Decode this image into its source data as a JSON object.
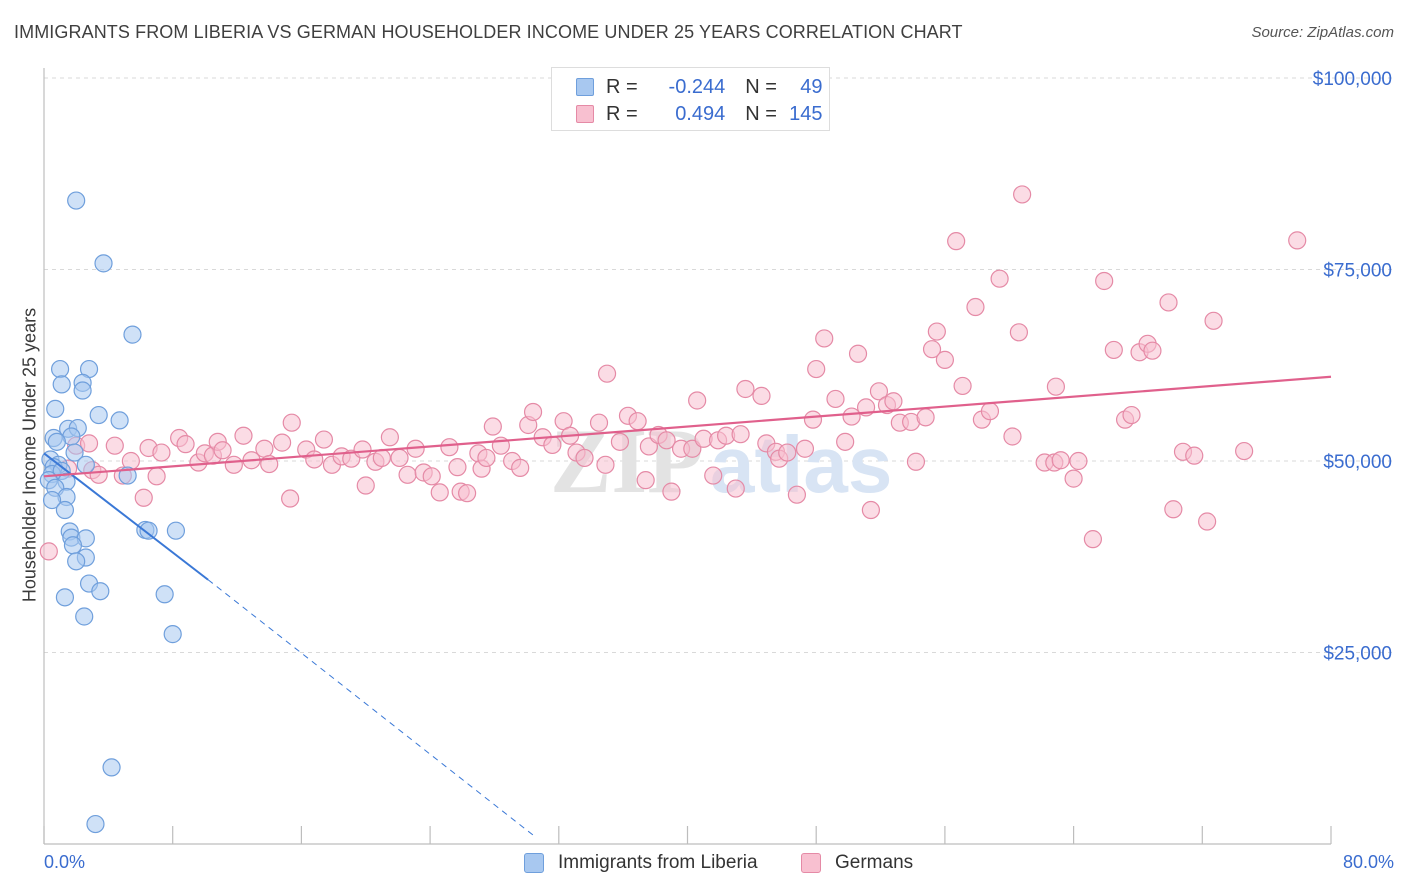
{
  "title": "IMMIGRANTS FROM LIBERIA VS GERMAN HOUSEHOLDER INCOME UNDER 25 YEARS CORRELATION CHART",
  "source": "Source: ZipAtlas.com",
  "watermark": {
    "zip": "ZIP",
    "atlas": "atlas"
  },
  "legend": {
    "rows": [
      {
        "r_label": "R = ",
        "r_value": "-0.244",
        "n_label": "N = ",
        "n_value": "49",
        "color": "#a8c8f0",
        "border": "#6f9fdc"
      },
      {
        "r_label": "R = ",
        "r_value": "0.494",
        "n_label": "N = ",
        "n_value": "145",
        "color": "#f8c0d0",
        "border": "#e58aa6"
      }
    ]
  },
  "chart_data": {
    "type": "scatter",
    "title": "IMMIGRANTS FROM LIBERIA VS GERMAN HOUSEHOLDER INCOME UNDER 25 YEARS CORRELATION CHART",
    "xlabel": "",
    "ylabel": "Householder Income Under 25 years",
    "xlim": [
      0,
      80
    ],
    "ylim": [
      0,
      100000
    ],
    "x_tick_labels": [
      "0.0%",
      "80.0%"
    ],
    "y_tick_labels": [
      "$25,000",
      "$50,000",
      "$75,000",
      "$100,000"
    ],
    "y_ticks": [
      25000,
      50000,
      75000,
      100000
    ],
    "grid": true,
    "series": [
      {
        "name": "Immigrants from Liberia",
        "color": "#a8c8f0",
        "stroke": "#6f9fdc",
        "trend": {
          "x0": 0,
          "y0": 51000,
          "x1": 10.2,
          "y1": 34500,
          "dashed_to_x": 30.5,
          "dashed_to_y": 1000,
          "color": "#3a78d6"
        },
        "points": [
          [
            2.0,
            84000
          ],
          [
            3.7,
            75800
          ],
          [
            5.5,
            66500
          ],
          [
            1.0,
            62000
          ],
          [
            2.8,
            62000
          ],
          [
            1.1,
            60000
          ],
          [
            2.4,
            60200
          ],
          [
            2.4,
            59200
          ],
          [
            0.7,
            56800
          ],
          [
            3.4,
            56000
          ],
          [
            4.7,
            55300
          ],
          [
            1.5,
            54200
          ],
          [
            2.1,
            54300
          ],
          [
            1.7,
            53200
          ],
          [
            0.6,
            53000
          ],
          [
            0.8,
            52500
          ],
          [
            1.9,
            51100
          ],
          [
            0.4,
            50200
          ],
          [
            0.9,
            49500
          ],
          [
            0.6,
            49200
          ],
          [
            2.6,
            49500
          ],
          [
            0.5,
            48300
          ],
          [
            1.1,
            48700
          ],
          [
            1.4,
            47300
          ],
          [
            0.3,
            47500
          ],
          [
            0.7,
            46500
          ],
          [
            5.2,
            48100
          ],
          [
            1.4,
            45300
          ],
          [
            0.5,
            44900
          ],
          [
            1.3,
            43600
          ],
          [
            1.6,
            40800
          ],
          [
            1.7,
            40000
          ],
          [
            2.6,
            39900
          ],
          [
            1.8,
            39000
          ],
          [
            6.3,
            41000
          ],
          [
            6.5,
            40900
          ],
          [
            8.2,
            40900
          ],
          [
            2.6,
            37400
          ],
          [
            2.0,
            36900
          ],
          [
            2.8,
            34000
          ],
          [
            1.3,
            32200
          ],
          [
            3.5,
            33000
          ],
          [
            7.5,
            32600
          ],
          [
            2.5,
            29700
          ],
          [
            8.0,
            27400
          ],
          [
            4.2,
            10000
          ],
          [
            3.2,
            2600
          ]
        ]
      },
      {
        "name": "Germans",
        "color": "#f8c0d0",
        "stroke": "#e58aa6",
        "trend": {
          "x0": 0,
          "y0": 48000,
          "x1": 80,
          "y1": 61000,
          "color": "#e0608c"
        },
        "points": [
          [
            0.3,
            38200
          ],
          [
            1.5,
            49000
          ],
          [
            2.0,
            52000
          ],
          [
            2.8,
            52300
          ],
          [
            3.0,
            48800
          ],
          [
            3.4,
            48200
          ],
          [
            4.4,
            52000
          ],
          [
            4.9,
            48100
          ],
          [
            5.4,
            50000
          ],
          [
            6.2,
            45200
          ],
          [
            6.5,
            51700
          ],
          [
            7.0,
            48000
          ],
          [
            7.3,
            51100
          ],
          [
            8.4,
            53000
          ],
          [
            8.8,
            52200
          ],
          [
            9.6,
            49800
          ],
          [
            10.0,
            51000
          ],
          [
            10.5,
            50700
          ],
          [
            10.8,
            52500
          ],
          [
            11.1,
            51400
          ],
          [
            11.8,
            49500
          ],
          [
            12.4,
            53300
          ],
          [
            12.9,
            50100
          ],
          [
            13.7,
            51600
          ],
          [
            14.0,
            49600
          ],
          [
            14.8,
            52400
          ],
          [
            15.4,
            55000
          ],
          [
            15.3,
            45100
          ],
          [
            16.3,
            51500
          ],
          [
            16.8,
            50200
          ],
          [
            17.4,
            52800
          ],
          [
            17.9,
            49500
          ],
          [
            18.5,
            50600
          ],
          [
            19.1,
            50300
          ],
          [
            19.8,
            51500
          ],
          [
            20.0,
            46800
          ],
          [
            20.6,
            49900
          ],
          [
            21.0,
            50400
          ],
          [
            21.5,
            53100
          ],
          [
            22.1,
            50400
          ],
          [
            22.6,
            48200
          ],
          [
            23.1,
            51600
          ],
          [
            23.6,
            48500
          ],
          [
            24.1,
            48000
          ],
          [
            24.6,
            45900
          ],
          [
            25.2,
            51800
          ],
          [
            25.7,
            49200
          ],
          [
            25.9,
            46000
          ],
          [
            26.3,
            45800
          ],
          [
            27.0,
            51000
          ],
          [
            27.2,
            49000
          ],
          [
            27.5,
            50400
          ],
          [
            27.9,
            54500
          ],
          [
            28.4,
            52000
          ],
          [
            29.1,
            50000
          ],
          [
            29.6,
            49100
          ],
          [
            30.1,
            54700
          ],
          [
            30.4,
            56400
          ],
          [
            31.0,
            53100
          ],
          [
            31.6,
            52100
          ],
          [
            32.3,
            55200
          ],
          [
            32.7,
            53300
          ],
          [
            33.1,
            51100
          ],
          [
            33.6,
            50400
          ],
          [
            34.5,
            55000
          ],
          [
            34.9,
            49500
          ],
          [
            35.0,
            61400
          ],
          [
            35.8,
            52500
          ],
          [
            36.3,
            55900
          ],
          [
            36.9,
            55200
          ],
          [
            37.4,
            47500
          ],
          [
            37.6,
            51900
          ],
          [
            38.2,
            53400
          ],
          [
            38.7,
            52700
          ],
          [
            39.0,
            46000
          ],
          [
            39.6,
            51600
          ],
          [
            40.3,
            51600
          ],
          [
            40.6,
            57900
          ],
          [
            41.0,
            52900
          ],
          [
            41.6,
            48100
          ],
          [
            41.9,
            52700
          ],
          [
            42.4,
            53300
          ],
          [
            43.0,
            46400
          ],
          [
            43.3,
            53500
          ],
          [
            43.6,
            59400
          ],
          [
            44.6,
            58500
          ],
          [
            44.9,
            52300
          ],
          [
            45.5,
            51200
          ],
          [
            45.7,
            50300
          ],
          [
            46.2,
            51100
          ],
          [
            46.8,
            45600
          ],
          [
            47.3,
            51600
          ],
          [
            47.8,
            55400
          ],
          [
            48.0,
            62000
          ],
          [
            48.5,
            66000
          ],
          [
            49.2,
            58100
          ],
          [
            49.8,
            52500
          ],
          [
            50.2,
            55800
          ],
          [
            50.6,
            64000
          ],
          [
            51.1,
            57000
          ],
          [
            51.4,
            43600
          ],
          [
            51.9,
            59100
          ],
          [
            52.4,
            57300
          ],
          [
            52.8,
            57800
          ],
          [
            53.2,
            55000
          ],
          [
            53.9,
            55100
          ],
          [
            54.2,
            49900
          ],
          [
            54.8,
            55700
          ],
          [
            55.2,
            64600
          ],
          [
            55.5,
            66900
          ],
          [
            56.0,
            63200
          ],
          [
            56.7,
            78700
          ],
          [
            57.1,
            59800
          ],
          [
            57.9,
            70100
          ],
          [
            58.3,
            55400
          ],
          [
            58.8,
            56500
          ],
          [
            59.4,
            73800
          ],
          [
            60.2,
            53200
          ],
          [
            60.6,
            66800
          ],
          [
            60.8,
            84800
          ],
          [
            62.2,
            49800
          ],
          [
            62.8,
            49800
          ],
          [
            62.9,
            59700
          ],
          [
            63.2,
            50100
          ],
          [
            64.0,
            47700
          ],
          [
            64.3,
            50000
          ],
          [
            65.2,
            39800
          ],
          [
            65.9,
            73500
          ],
          [
            66.5,
            64500
          ],
          [
            67.2,
            55400
          ],
          [
            67.6,
            56000
          ],
          [
            68.1,
            64200
          ],
          [
            68.6,
            65300
          ],
          [
            68.9,
            64400
          ],
          [
            69.9,
            70700
          ],
          [
            70.2,
            43700
          ],
          [
            70.8,
            51200
          ],
          [
            71.5,
            50700
          ],
          [
            72.3,
            42100
          ],
          [
            72.7,
            68300
          ],
          [
            74.6,
            51300
          ],
          [
            77.9,
            78800
          ]
        ]
      }
    ]
  }
}
